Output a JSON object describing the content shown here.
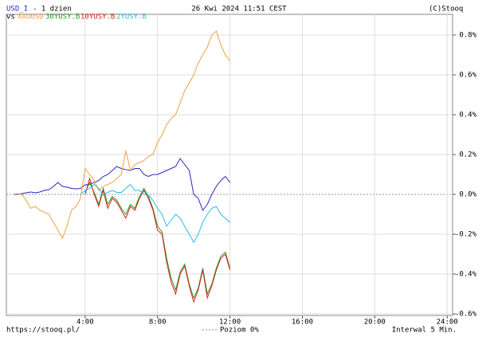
{
  "chart_data": {
    "type": "line",
    "period": "- 1 dzien",
    "legend_prefix": "vs",
    "timestamp": "26 Kwi 2024 11:51 CEST",
    "source": "(C)Stooq",
    "url": "https://stooq.pl/",
    "zero_label": "Poziom 0%",
    "interval": "Interwal 5 Min.",
    "x": [
      0,
      0.25,
      0.5,
      0.75,
      1,
      1.25,
      1.5,
      1.75,
      2,
      2.25,
      2.5,
      2.75,
      3,
      3.25,
      3.5,
      3.75,
      4,
      4.25,
      4.5,
      4.75,
      5,
      5.25,
      5.5,
      5.75,
      6,
      6.25,
      6.5,
      6.75,
      7,
      7.25,
      7.5,
      7.75,
      8,
      8.25,
      8.5,
      8.75,
      9,
      9.25,
      9.5,
      9.75,
      10,
      10.25,
      10.5,
      10.75,
      11,
      11.25,
      11.5,
      11.75,
      12
    ],
    "xlim": [
      -0.35,
      24.3
    ],
    "xticks": [
      {
        "value": 4,
        "label": "4:00"
      },
      {
        "value": 8,
        "label": "8:00"
      },
      {
        "value": 12,
        "label": "12:00"
      },
      {
        "value": 16,
        "label": "16:00"
      },
      {
        "value": 20,
        "label": "20:00"
      },
      {
        "value": 24,
        "label": "24:00"
      }
    ],
    "ylim": [
      -0.608,
      0.904
    ],
    "yticks": [
      {
        "value": -0.6,
        "label": "-0.6%"
      },
      {
        "value": -0.4,
        "label": "-0.4%"
      },
      {
        "value": -0.2,
        "label": "-0.2%"
      },
      {
        "value": 0,
        "label": "0.0%"
      },
      {
        "value": 0.2,
        "label": "0.2%"
      },
      {
        "value": 0.4,
        "label": "0.4%"
      },
      {
        "value": 0.6,
        "label": "0.6%"
      },
      {
        "value": 0.8,
        "label": "0.8%"
      }
    ],
    "grid": true,
    "series": [
      {
        "name": "USD_I",
        "color": "#2828c0",
        "values": [
          0,
          0,
          0.004,
          0.008,
          0.012,
          0.008,
          0.012,
          0.02,
          0.024,
          0.04,
          0.06,
          0.04,
          0.036,
          0.03,
          0.028,
          0.03,
          0.048,
          0.05,
          0.06,
          0.07,
          0.09,
          0.1,
          0.12,
          0.14,
          0.13,
          0.125,
          0.12,
          0.13,
          0.13,
          0.1,
          0.09,
          0.1,
          0.1,
          0.11,
          0.12,
          0.13,
          0.14,
          0.18,
          0.15,
          0.12,
          0.0,
          -0.02,
          -0.08,
          -0.05,
          0.0,
          0.04,
          0.07,
          0.09,
          0.06
        ]
      },
      {
        "name": "XAUUSD",
        "color": "#f0a040",
        "values": [
          0,
          0.004,
          0,
          -0.03,
          -0.07,
          -0.06,
          -0.08,
          -0.09,
          -0.1,
          -0.14,
          -0.18,
          -0.22,
          -0.16,
          -0.08,
          -0.06,
          -0.02,
          0.13,
          0.1,
          0.07,
          0.02,
          0.04,
          0.05,
          0.06,
          0.08,
          0.1,
          0.22,
          0.12,
          0.15,
          0.16,
          0.17,
          0.19,
          0.2,
          0.26,
          0.3,
          0.35,
          0.38,
          0.4,
          0.46,
          0.52,
          0.56,
          0.6,
          0.66,
          0.7,
          0.74,
          0.8,
          0.82,
          0.75,
          0.7,
          0.67
        ]
      },
      {
        "name": "30YUSY.B",
        "color": "#20a020",
        "values": [
          null,
          null,
          null,
          null,
          null,
          null,
          null,
          null,
          null,
          null,
          null,
          null,
          null,
          null,
          null,
          null,
          0.01,
          0.06,
          0.01,
          -0.05,
          0.03,
          -0.05,
          -0.01,
          -0.03,
          -0.07,
          -0.1,
          -0.05,
          -0.07,
          -0.01,
          0.03,
          -0.01,
          -0.07,
          -0.16,
          -0.19,
          -0.32,
          -0.42,
          -0.48,
          -0.39,
          -0.35,
          -0.45,
          -0.52,
          -0.47,
          -0.37,
          -0.5,
          -0.45,
          -0.37,
          -0.31,
          -0.29,
          -0.37
        ]
      },
      {
        "name": "10YUSY.B",
        "color": "#e02020",
        "values": [
          null,
          null,
          null,
          null,
          null,
          null,
          null,
          null,
          null,
          null,
          null,
          null,
          null,
          null,
          null,
          null,
          0,
          0.08,
          0,
          -0.06,
          0.02,
          -0.07,
          -0.02,
          -0.04,
          -0.08,
          -0.12,
          -0.06,
          -0.08,
          -0.02,
          0.02,
          -0.02,
          -0.08,
          -0.18,
          -0.2,
          -0.34,
          -0.44,
          -0.5,
          -0.4,
          -0.36,
          -0.46,
          -0.54,
          -0.48,
          -0.38,
          -0.52,
          -0.46,
          -0.38,
          -0.32,
          -0.3,
          -0.38
        ]
      },
      {
        "name": "2YUSY.B",
        "color": "#30b8e8",
        "values": [
          null,
          null,
          null,
          null,
          null,
          null,
          null,
          null,
          null,
          null,
          null,
          null,
          null,
          null,
          null,
          0,
          0.02,
          0.03,
          0.05,
          0.03,
          -0.004,
          0.01,
          0.02,
          0.01,
          0.01,
          0.03,
          0.05,
          0.02,
          0.02,
          0.0,
          -0.004,
          -0.03,
          -0.07,
          -0.1,
          -0.16,
          -0.13,
          -0.1,
          -0.12,
          -0.16,
          -0.2,
          -0.24,
          -0.2,
          -0.14,
          -0.1,
          -0.07,
          -0.06,
          -0.1,
          -0.12,
          -0.14
        ]
      }
    ]
  }
}
